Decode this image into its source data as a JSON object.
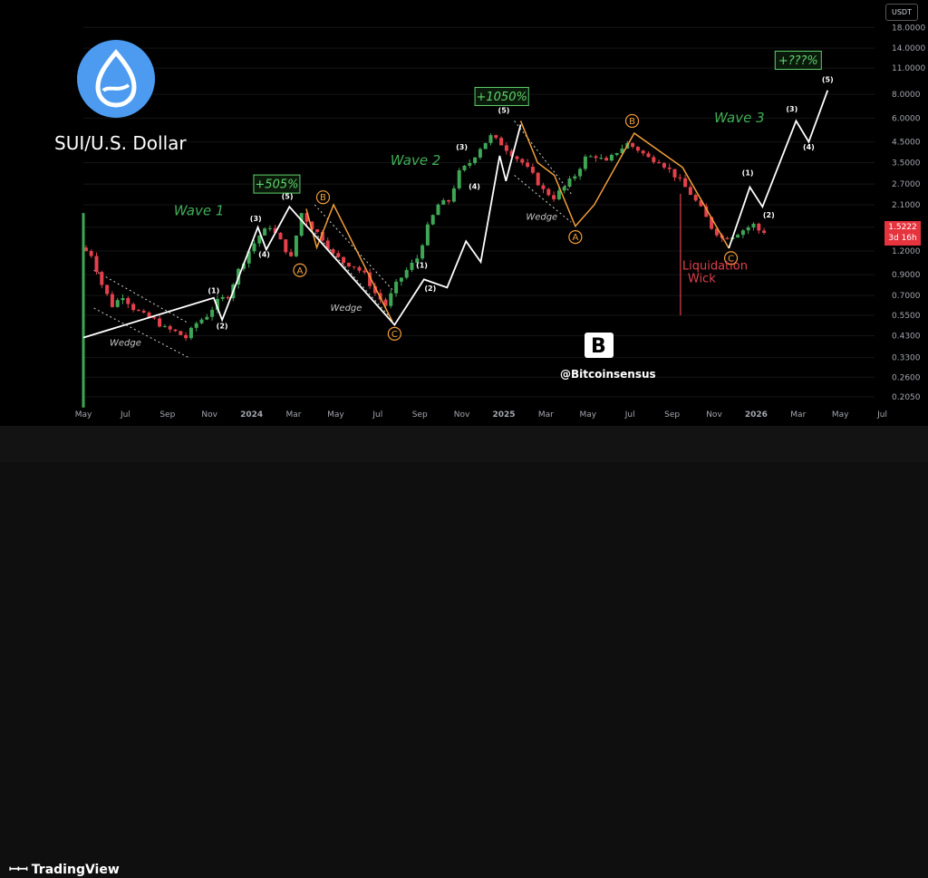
{
  "header": {
    "currency": "USDT"
  },
  "price_tag": {
    "price": "1.5222",
    "countdown": "3d 16h",
    "color": "#e5343e"
  },
  "title": "SUI/U.S. Dollar",
  "footer": {
    "brand": "TradingView"
  },
  "watermark": "@Bitcoinsensus",
  "colors": {
    "up": "#3fa656",
    "down": "#e3414b",
    "wave_line": "#ffffff",
    "correction_line": "#f29e3a",
    "wave_text": "#3fae55",
    "background": "#000000"
  },
  "chart_data": {
    "type": "line",
    "title": "SUI/U.S. Dollar",
    "y_scale": "log",
    "ylim": [
      0.17,
      22
    ],
    "y_ticks": [
      "18.0000",
      "14.0000",
      "11.0000",
      "8.0000",
      "6.0000",
      "4.5000",
      "3.5000",
      "2.7000",
      "2.1000",
      "1.6000",
      "1.2000",
      "0.9000",
      "0.7000",
      "0.5500",
      "0.4300",
      "0.3300",
      "0.2600",
      "0.2050"
    ],
    "y_tick_values": [
      18,
      14,
      11,
      8,
      6,
      4.5,
      3.5,
      2.7,
      2.1,
      1.6,
      1.2,
      0.9,
      0.7,
      0.55,
      0.43,
      0.33,
      0.26,
      0.205
    ],
    "x_ticks": [
      "May",
      "Jul",
      "Sep",
      "Nov",
      "2024",
      "Mar",
      "May",
      "Jul",
      "Sep",
      "Nov",
      "2025",
      "Mar",
      "May",
      "Jul",
      "Sep",
      "Nov",
      "2026",
      "Mar",
      "May",
      "Jul"
    ],
    "x_tick_months": [
      0,
      2,
      4,
      6,
      8,
      10,
      12,
      14,
      16,
      18,
      20,
      22,
      24,
      26,
      28,
      30,
      32,
      34,
      36,
      38
    ],
    "price_path": [
      [
        0,
        1.25
      ],
      [
        0.5,
        1.15
      ],
      [
        1,
        0.8
      ],
      [
        1.5,
        0.62
      ],
      [
        2,
        0.7
      ],
      [
        2.5,
        0.6
      ],
      [
        3,
        0.55
      ],
      [
        3.5,
        0.52
      ],
      [
        4,
        0.47
      ],
      [
        4.5,
        0.45
      ],
      [
        5,
        0.42
      ],
      [
        5.5,
        0.5
      ],
      [
        6,
        0.55
      ],
      [
        6.5,
        0.65
      ],
      [
        7,
        0.7
      ],
      [
        7.5,
        0.95
      ],
      [
        8,
        1.2
      ],
      [
        8.5,
        1.45
      ],
      [
        9,
        1.62
      ],
      [
        9.5,
        1.35
      ],
      [
        10,
        1.1
      ],
      [
        10.5,
        1.9
      ],
      [
        11,
        1.6
      ],
      [
        11.5,
        1.4
      ],
      [
        12,
        1.15
      ],
      [
        12.5,
        1.05
      ],
      [
        13,
        1.0
      ],
      [
        13.5,
        0.9
      ],
      [
        14,
        0.72
      ],
      [
        14.5,
        0.62
      ],
      [
        15,
        0.8
      ],
      [
        15.5,
        0.95
      ],
      [
        16,
        1.1
      ],
      [
        16.5,
        1.6
      ],
      [
        17,
        2.1
      ],
      [
        17.5,
        2.2
      ],
      [
        18,
        3.1
      ],
      [
        18.5,
        3.5
      ],
      [
        19,
        4.2
      ],
      [
        19.5,
        4.8
      ],
      [
        20,
        4.4
      ],
      [
        20.5,
        3.9
      ],
      [
        21,
        3.5
      ],
      [
        21.5,
        3.0
      ],
      [
        22,
        2.5
      ],
      [
        22.5,
        2.3
      ],
      [
        23,
        2.6
      ],
      [
        23.5,
        3.0
      ],
      [
        24,
        3.7
      ],
      [
        24.5,
        3.8
      ],
      [
        25,
        3.5
      ],
      [
        25.5,
        4.0
      ],
      [
        26,
        4.4
      ],
      [
        26.5,
        4.1
      ],
      [
        27,
        3.7
      ],
      [
        27.5,
        3.6
      ],
      [
        28,
        3.2
      ],
      [
        28.5,
        2.8
      ],
      [
        29,
        2.4
      ],
      [
        29.5,
        2.0
      ],
      [
        30,
        1.6
      ],
      [
        30.5,
        1.4
      ],
      [
        31,
        1.45
      ],
      [
        31.5,
        1.55
      ],
      [
        32,
        1.65
      ],
      [
        32.3,
        1.52
      ]
    ],
    "impulse_path": [
      [
        0,
        0.42
      ],
      [
        6.2,
        0.68
      ],
      [
        6.6,
        0.52
      ],
      [
        8.3,
        1.6
      ],
      [
        8.7,
        1.22
      ],
      [
        9.8,
        2.05
      ],
      [
        14.8,
        0.49
      ],
      [
        16.2,
        0.85
      ],
      [
        17.3,
        0.77
      ],
      [
        18.2,
        1.35
      ],
      [
        18.9,
        1.05
      ],
      [
        19.8,
        3.8
      ],
      [
        20.1,
        2.8
      ],
      [
        20.8,
        5.55
      ]
    ],
    "forecast_path": [
      [
        30.7,
        1.24
      ],
      [
        31.7,
        2.6
      ],
      [
        32.3,
        2.05
      ],
      [
        33.9,
        5.8
      ],
      [
        34.5,
        4.5
      ],
      [
        35.4,
        8.4
      ]
    ],
    "correction_paths": [
      [
        [
          10.6,
          2.0
        ],
        [
          11.1,
          1.25
        ],
        [
          11.9,
          2.1
        ],
        [
          14.7,
          0.51
        ]
      ],
      [
        [
          20.8,
          5.8
        ],
        [
          21.6,
          3.5
        ],
        [
          22.4,
          3.0
        ],
        [
          23.4,
          1.62
        ],
        [
          24.3,
          2.1
        ],
        [
          26.2,
          5.0
        ],
        [
          28.5,
          3.3
        ],
        [
          30.7,
          1.24
        ]
      ]
    ],
    "dashed_lines": [
      [
        [
          0.5,
          0.95
        ],
        [
          5.0,
          0.5
        ]
      ],
      [
        [
          0.5,
          0.6
        ],
        [
          5.0,
          0.33
        ]
      ],
      [
        [
          11.0,
          2.1
        ],
        [
          14.7,
          0.75
        ]
      ],
      [
        [
          11.0,
          1.5
        ],
        [
          14.7,
          0.52
        ]
      ],
      [
        [
          20.5,
          5.8
        ],
        [
          23.2,
          2.4
        ]
      ],
      [
        [
          20.5,
          3.0
        ],
        [
          23.2,
          1.7
        ]
      ]
    ],
    "sub_waves": [
      {
        "label": "(1)",
        "x": 6.2,
        "y": 0.72
      },
      {
        "label": "(2)",
        "x": 6.6,
        "y": 0.47
      },
      {
        "label": "(3)",
        "x": 8.2,
        "y": 1.72
      },
      {
        "label": "(4)",
        "x": 8.6,
        "y": 1.12
      },
      {
        "label": "(5)",
        "x": 9.7,
        "y": 2.25
      },
      {
        "label": "(1)",
        "x": 16.1,
        "y": 0.98
      },
      {
        "label": "(2)",
        "x": 16.5,
        "y": 0.74
      },
      {
        "label": "(3)",
        "x": 18.0,
        "y": 4.1
      },
      {
        "label": "(4)",
        "x": 18.6,
        "y": 2.55
      },
      {
        "label": "(5)",
        "x": 20.0,
        "y": 6.4
      },
      {
        "label": "(1)",
        "x": 31.6,
        "y": 3.0
      },
      {
        "label": "(2)",
        "x": 32.6,
        "y": 1.8
      },
      {
        "label": "(3)",
        "x": 33.7,
        "y": 6.5
      },
      {
        "label": "(4)",
        "x": 34.5,
        "y": 4.1
      },
      {
        "label": "(5)",
        "x": 35.4,
        "y": 9.3
      }
    ],
    "abc_labels": [
      {
        "label": "A",
        "x": 10.3,
        "y": 0.95
      },
      {
        "label": "B",
        "x": 11.4,
        "y": 2.3
      },
      {
        "label": "C",
        "x": 14.8,
        "y": 0.44
      },
      {
        "label": "A",
        "x": 23.4,
        "y": 1.42
      },
      {
        "label": "B",
        "x": 26.1,
        "y": 5.8
      },
      {
        "label": "C",
        "x": 30.8,
        "y": 1.1
      }
    ],
    "wave_labels": [
      {
        "label": "Wave 1",
        "x": 5.5,
        "y": 1.85
      },
      {
        "label": "Wave 2",
        "x": 15.8,
        "y": 3.4
      },
      {
        "label": "Wave 3",
        "x": 31.2,
        "y": 5.7
      }
    ],
    "wedge_labels": [
      {
        "label": "Wedge",
        "x": 2.0,
        "y": 0.38
      },
      {
        "label": "Wedge",
        "x": 12.5,
        "y": 0.58
      },
      {
        "label": "Wedge",
        "x": 21.8,
        "y": 1.75
      }
    ],
    "percent_boxes": [
      {
        "label": "+505%",
        "x": 9.2,
        "y": 2.7
      },
      {
        "label": "+1050%",
        "x": 19.9,
        "y": 7.8
      },
      {
        "label": "+???%",
        "x": 34.0,
        "y": 12.1
      }
    ],
    "annotation": {
      "label_line1": "Liquidation",
      "label_line2": "Wick",
      "x": 28.4,
      "y_low": 0.55,
      "y_high": 2.4
    }
  }
}
